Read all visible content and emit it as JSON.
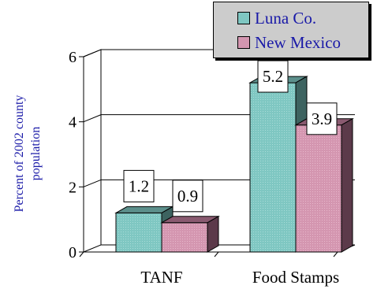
{
  "chart_data": {
    "type": "bar",
    "categories": [
      "TANF",
      "Food Stamps"
    ],
    "series": [
      {
        "name": "Luna Co.",
        "values": [
          1.2,
          5.2
        ]
      },
      {
        "name": "New Mexico",
        "values": [
          0.9,
          3.9
        ]
      }
    ],
    "ylabel_lines": [
      "Percent of 2002 county",
      "population"
    ],
    "ylim": [
      0,
      6
    ],
    "yticks": [
      "0",
      "2",
      "4",
      "6"
    ],
    "data_labels": [
      [
        "1.2",
        "5.2"
      ],
      [
        "0.9",
        "3.9"
      ]
    ],
    "grid": true,
    "three_d": true,
    "legend_position": "top-right",
    "colors": {
      "luna_front": "#7fc7c2",
      "luna_side": "#3d6360",
      "luna_top": "#5c8f8b",
      "nm_front": "#d496b0",
      "nm_side": "#5c3a4a",
      "nm_top": "#8a5a70",
      "axis_text": "#000000",
      "label_color": "#1a1aa8",
      "grid": "#000000",
      "legend_bg": "#cccccc"
    }
  }
}
